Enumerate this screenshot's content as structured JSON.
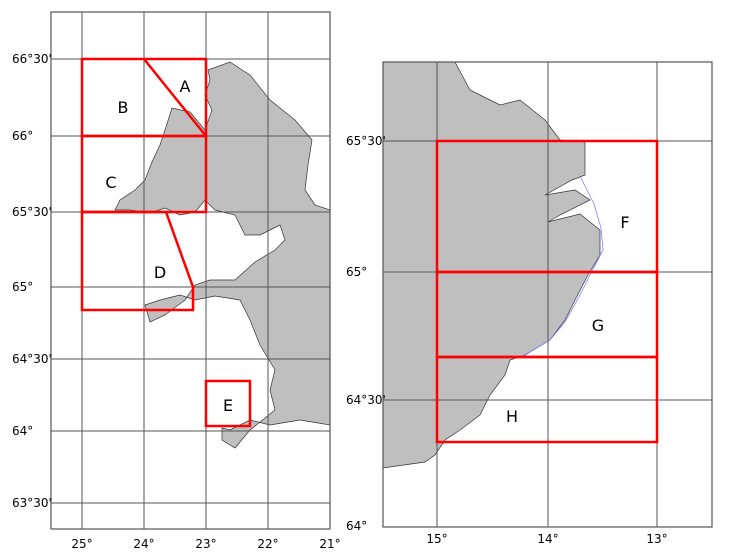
{
  "colors": {
    "land": "#bfbfbf",
    "region_outline": "#ff0000",
    "grid": "#555555",
    "baseline": "#8080ff"
  },
  "left_map": {
    "lat_labels": [
      "66°30'",
      "66°",
      "65°30'",
      "65°",
      "64°30'",
      "64°",
      "63°30'"
    ],
    "lon_labels": [
      "25°",
      "24°",
      "23°",
      "22°",
      "21°"
    ],
    "regions": [
      "A",
      "B",
      "C",
      "D",
      "E"
    ]
  },
  "right_map": {
    "lat_labels": [
      "65°30'",
      "65°",
      "64°30'",
      "64°"
    ],
    "lon_labels": [
      "15°",
      "14°",
      "13°"
    ],
    "regions": [
      "F",
      "G",
      "H"
    ]
  }
}
